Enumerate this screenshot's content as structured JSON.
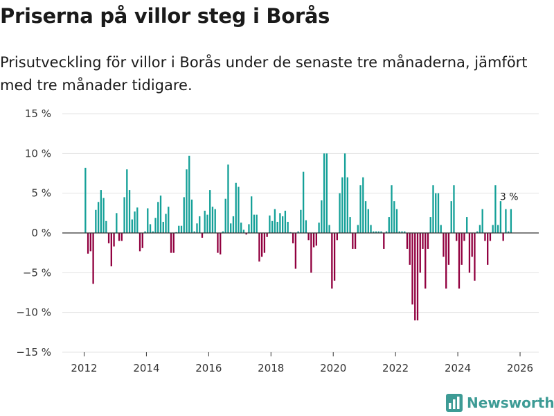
{
  "title": "Priserna på villor steg i Borås",
  "subtitle": "Prisutveckling för villor i Borås under de senaste tre månaderna, jämfört med tre månader tidigare.",
  "brand": {
    "name": "Newsworthy",
    "logo_icon": "bar-chart-logo-icon"
  },
  "colors": {
    "positive": "#14a098",
    "negative": "#91003f",
    "axis": "#333333",
    "grid": "#e3e3e3",
    "brand": "#3d9b95"
  },
  "chart_data": {
    "type": "bar",
    "title": "Priserna på villor steg i Borås",
    "xlabel": "",
    "ylabel": "",
    "ylim": [
      -15,
      15
    ],
    "xlim": [
      2011.3,
      2026.6
    ],
    "yticks": [
      {
        "value": 15,
        "label": "15 %"
      },
      {
        "value": 10,
        "label": "10 %"
      },
      {
        "value": 5,
        "label": "5 %"
      },
      {
        "value": 0,
        "label": "0 %"
      },
      {
        "value": -5,
        "label": "−5 %"
      },
      {
        "value": -10,
        "label": "−10 %"
      },
      {
        "value": -15,
        "label": "−15 %"
      }
    ],
    "xticks": [
      {
        "value": 2012,
        "label": "2012"
      },
      {
        "value": 2014,
        "label": "2014"
      },
      {
        "value": 2016,
        "label": "2016"
      },
      {
        "value": 2018,
        "label": "2018"
      },
      {
        "value": 2020,
        "label": "2020"
      },
      {
        "value": 2022,
        "label": "2022"
      },
      {
        "value": 2024,
        "label": "2024"
      },
      {
        "value": 2026,
        "label": "2026"
      }
    ],
    "start": 2012,
    "period": "monthly",
    "values": [
      8.2,
      -2.6,
      -2.3,
      -6.4,
      2.9,
      3.9,
      5.4,
      4.4,
      1.5,
      -1.3,
      -4.2,
      -1.7,
      2.5,
      -1.0,
      -1.0,
      4.5,
      8.0,
      5.4,
      1.7,
      2.7,
      3.2,
      -2.3,
      -1.9,
      0.2,
      3.1,
      1.1,
      0.2,
      1.9,
      3.9,
      4.7,
      1.4,
      2.4,
      3.3,
      -2.5,
      -2.5,
      0.1,
      0.9,
      0.9,
      4.5,
      8.0,
      9.7,
      4.2,
      0.2,
      1.2,
      2.1,
      -0.6,
      2.8,
      2.3,
      5.4,
      3.3,
      3.0,
      -2.5,
      -2.7,
      0.2,
      4.3,
      8.6,
      1.2,
      2.1,
      6.3,
      5.8,
      1.3,
      0.4,
      -0.2,
      1.1,
      4.6,
      2.3,
      2.3,
      -3.6,
      -3.0,
      -2.5,
      -0.5,
      2.2,
      1.5,
      3.0,
      1.4,
      2.5,
      2.1,
      2.8,
      1.4,
      0.1,
      -1.3,
      -4.5,
      0.2,
      2.9,
      7.7,
      1.6,
      -0.9,
      -5.0,
      -1.8,
      -1.6,
      1.3,
      4.1,
      10.0,
      10.0,
      1.0,
      -7.0,
      -6.0,
      -0.9,
      5.0,
      7.0,
      10.0,
      7.0,
      2.0,
      -2.0,
      -2.0,
      1.0,
      6.0,
      7.0,
      4.0,
      3.0,
      1.0,
      0.2,
      0.2,
      0.2,
      0.2,
      -2.0,
      0.2,
      2.0,
      6.0,
      4.0,
      3.0,
      0.2,
      0.2,
      0.2,
      -2.0,
      -4.0,
      -9.0,
      -11.0,
      -11.0,
      -5.0,
      -2.0,
      -7.0,
      -2.0,
      2.0,
      6.0,
      5.0,
      5.0,
      1.0,
      -3.0,
      -7.0,
      -4.0,
      4.0,
      6.0,
      -1.0,
      -7.0,
      -4.0,
      -1.0,
      2.0,
      -5.0,
      -3.0,
      -6.0,
      0.2,
      1.0,
      3.0,
      -1.0,
      -4.0,
      -1.0,
      1.0,
      6.0,
      1.0,
      4.0,
      -1.0,
      3.0,
      0.2,
      3.0
    ],
    "annotation": {
      "text": "3 %",
      "value": 3
    }
  }
}
